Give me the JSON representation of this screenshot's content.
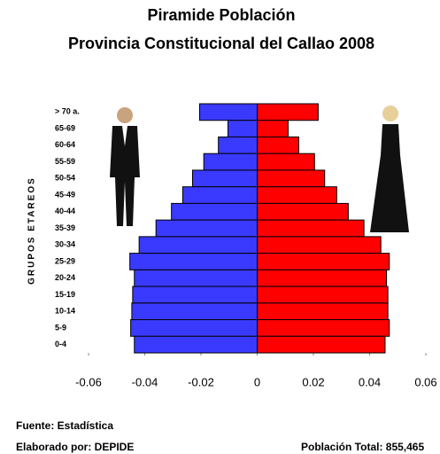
{
  "chart_data": {
    "type": "pyramid",
    "title": "Piramide Población",
    "subtitle": "Provincia Constitucional del Callao 2008",
    "y_label": "GRUPOS ETAREOS",
    "categories": [
      "> 70 a.",
      "65-69",
      "60-64",
      "55-59",
      "50-54",
      "45-49",
      "40-44",
      "35-39",
      "30-34",
      "25-29",
      "20-24",
      "15-19",
      "10-14",
      "5-9",
      "0-4"
    ],
    "series": [
      {
        "color": "#3a3aff",
        "values": [
          -0.0205,
          -0.0104,
          -0.0138,
          -0.019,
          -0.023,
          -0.0265,
          -0.0305,
          -0.036,
          -0.042,
          -0.0453,
          -0.0437,
          -0.0443,
          -0.0446,
          -0.045,
          -0.0437
        ]
      },
      {
        "color": "#ff0000",
        "values": [
          0.0217,
          0.011,
          0.0148,
          0.0204,
          0.024,
          0.0283,
          0.0324,
          0.038,
          0.044,
          0.047,
          0.046,
          0.0465,
          0.0465,
          0.047,
          0.0455
        ]
      }
    ],
    "xlim": [
      -0.06,
      0.06
    ],
    "xticks": [
      -0.06,
      -0.04,
      -0.02,
      0,
      0.02,
      0.04,
      0.06
    ],
    "notes": [
      "Fuente: Estadística",
      "Elaborado por: DEPIDE"
    ],
    "total": "Población Total: 855,465"
  }
}
